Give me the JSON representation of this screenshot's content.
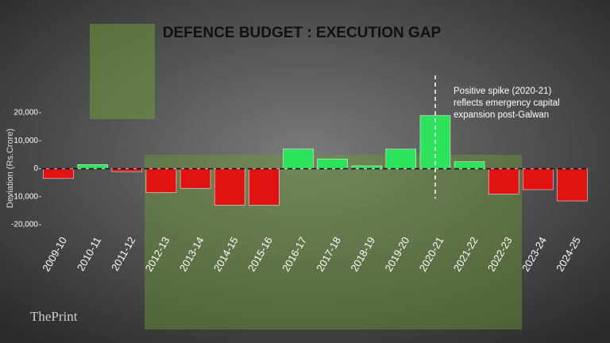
{
  "chart_data": {
    "type": "bar",
    "title": "DEFENCE BUDGET : EXECUTION GAP",
    "y_label": "Deviation (Rs.Crore)",
    "categories": [
      "2009-10",
      "2010-11",
      "2011-12",
      "2012-13",
      "2013-14",
      "2014-15",
      "2015-16",
      "2016-17",
      "2017-18",
      "2018-19",
      "2019-20",
      "2020-21",
      "2021-22",
      "2022-23",
      "2023-24",
      "2024-25"
    ],
    "values": [
      -3500,
      1500,
      -1000,
      -8500,
      -7000,
      -13000,
      -13000,
      7000,
      3500,
      1000,
      7000,
      19000,
      2500,
      -9000,
      -7500,
      -11500
    ],
    "positive_color": "#2ee35c",
    "negative_color": "#e01212",
    "ylim": [
      -20000,
      20000
    ],
    "yticks": [
      {
        "value": 20000,
        "label": "20,000"
      },
      {
        "value": 10000,
        "label": "10,000"
      },
      0,
      {
        "value": -10000,
        "label": "-10,000"
      },
      {
        "value": -20000,
        "label": "-20,000"
      }
    ],
    "annotation": {
      "lines": [
        "Positive spike (2020-21)",
        "reflects emergency capital",
        "expansion post-Galwan"
      ],
      "category_index": 11
    },
    "source": "ThePrint"
  }
}
